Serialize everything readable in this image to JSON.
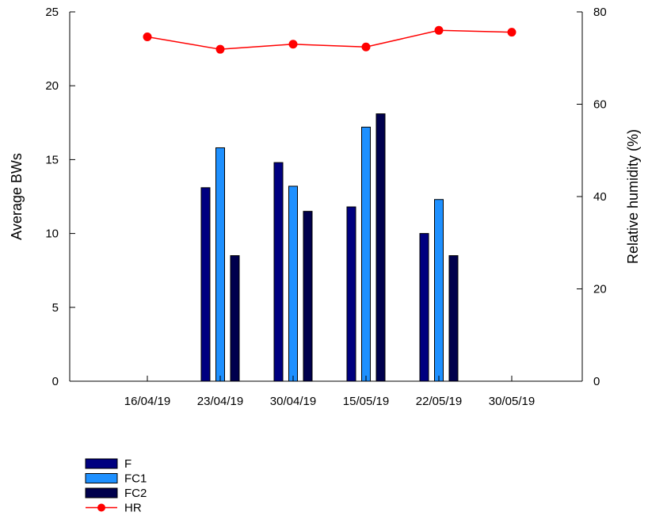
{
  "chart_data": {
    "type": "bar",
    "categories": [
      "16/04/19",
      "23/04/19",
      "30/04/19",
      "15/05/19",
      "22/05/19",
      "30/05/19"
    ],
    "series": [
      {
        "name": "F",
        "axis": "left",
        "type": "bar",
        "color": "#000080",
        "values": [
          null,
          13.1,
          14.8,
          11.8,
          10.0,
          null
        ]
      },
      {
        "name": "FC1",
        "axis": "left",
        "type": "bar",
        "color": "#1e90ff",
        "values": [
          null,
          15.8,
          13.2,
          17.2,
          12.3,
          null
        ]
      },
      {
        "name": "FC2",
        "axis": "left",
        "type": "bar",
        "color": "#00004d",
        "values": [
          null,
          8.5,
          11.5,
          18.1,
          8.5,
          null
        ]
      },
      {
        "name": "HR",
        "axis": "right",
        "type": "line",
        "color": "#ff0000",
        "values": [
          74.6,
          71.9,
          73.0,
          72.4,
          76.0,
          75.6
        ]
      }
    ],
    "xlabel": "",
    "ylabel": "Average BWs",
    "y2label": "Relative humidity (%)",
    "ylim": [
      0,
      25
    ],
    "y2lim": [
      0,
      80
    ],
    "yticks": [
      "0",
      "5",
      "10",
      "15",
      "20",
      "25"
    ],
    "y2ticks": [
      "0",
      "20",
      "40",
      "60",
      "80"
    ],
    "grid": false,
    "legend_position": "bottom-left"
  }
}
